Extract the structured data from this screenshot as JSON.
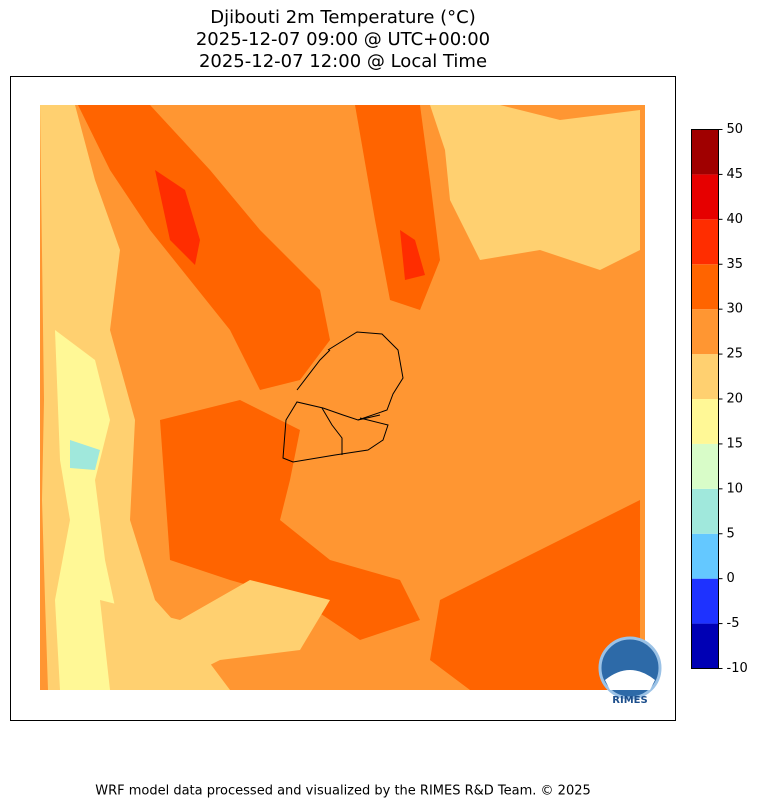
{
  "title": [
    "Djibouti 2m Temperature (°C)",
    "2025-12-07 09:00 @ UTC+00:00",
    "2025-12-07 12:00 @ Local Time"
  ],
  "colorbar": {
    "ticks": [
      -10,
      -5,
      0,
      5,
      10,
      15,
      20,
      25,
      30,
      35,
      40,
      45,
      50
    ],
    "colors": [
      "#0000b4",
      "#1e32ff",
      "#64c8ff",
      "#a0e8dc",
      "#d8fcc8",
      "#fff896",
      "#ffd070",
      "#ff9632",
      "#ff6400",
      "#ff2d00",
      "#e60000",
      "#a00000"
    ]
  },
  "logo_text": "RIMES",
  "footer": "WRF model data processed and visualized by the RIMES R&D Team. © 2025"
}
